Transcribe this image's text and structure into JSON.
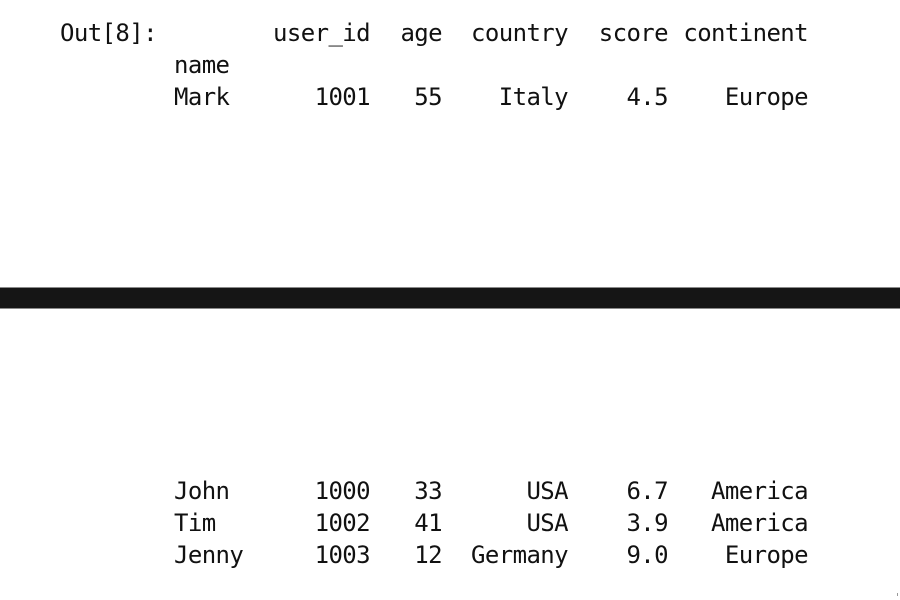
{
  "output_prompt": "Out[8]:",
  "columns": [
    "user_id",
    "age",
    "country",
    "score",
    "continent"
  ],
  "index_name": "name",
  "rows": [
    {
      "name": "Mark",
      "user_id": "1001",
      "age": "55",
      "country": "Italy",
      "score": "4.5",
      "continent": "Europe"
    },
    {
      "name": "John",
      "user_id": "1000",
      "age": "33",
      "country": "USA",
      "score": "6.7",
      "continent": "America"
    },
    {
      "name": "Tim",
      "user_id": "1002",
      "age": "41",
      "country": "USA",
      "score": "3.9",
      "continent": "America"
    },
    {
      "name": "Jenny",
      "user_id": "1003",
      "age": "12",
      "country": "Germany",
      "score": "9.0",
      "continent": "Europe"
    }
  ],
  "colors": {
    "background": "#ffffff",
    "text": "#111111",
    "divider": "#151515"
  }
}
